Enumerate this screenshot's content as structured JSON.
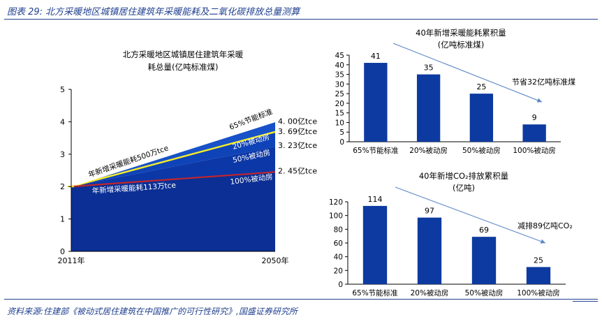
{
  "figure": {
    "title": "图表 29:  北方采暖地区城镇居住建筑年采暖能耗及二氧化碳排放总量测算",
    "source": "资料来源:住建部《被动式居住建筑在中国推广的可行性研究》,国盛证券研究所"
  },
  "colors": {
    "accent": "#1f3f8f",
    "bar": "#0d3aa0",
    "area_base": "#0b2f94",
    "red_line": "#c0262d",
    "yellow_line": "#f5ec2a",
    "arrow": "#5b86c8"
  },
  "chart_data": [
    {
      "type": "area",
      "title_lines": [
        "北方采暖地区城镇居住建筑年采暖",
        "耗总量(亿吨标准煤)"
      ],
      "x": [
        "2011年",
        "2050年"
      ],
      "ylim": [
        0,
        5
      ],
      "yticks": [
        "0",
        "1",
        "2",
        "3",
        "4",
        "5"
      ],
      "series": [
        {
          "name": "100%被动房",
          "values": [
            2.0,
            2.45
          ],
          "end_label": "2. 45亿tce"
        },
        {
          "name": "50%被动房",
          "values": [
            2.0,
            3.23
          ],
          "end_label": "3. 23亿tce"
        },
        {
          "name": "20%被动房",
          "values": [
            2.0,
            3.69
          ],
          "end_label": "3. 69亿tce"
        },
        {
          "name": "65%节能标准",
          "values": [
            2.0,
            4.0
          ],
          "end_label": "4. 00亿tce"
        }
      ],
      "annotations": [
        "年新增采暖能耗500万tce",
        "年新增采暖能耗113万tce"
      ]
    },
    {
      "type": "bar",
      "title_lines": [
        "40年新增采暖能耗累积量",
        "(亿吨标准煤)"
      ],
      "categories": [
        "65%节能标准",
        "20%被动房",
        "50%被动房",
        "100%被动房"
      ],
      "values": [
        41,
        35,
        25,
        9
      ],
      "ylim": [
        0,
        45
      ],
      "yticks": [
        "0",
        "5",
        "10",
        "15",
        "20",
        "25",
        "30",
        "35",
        "40",
        "45"
      ],
      "annotation": "节省32亿吨标准煤"
    },
    {
      "type": "bar",
      "title_lines": [
        "40年新增CO₂排放累积量",
        "(亿吨)"
      ],
      "categories": [
        "65%节能标准",
        "20%被动房",
        "50%被动房",
        "100%被动房"
      ],
      "values": [
        114,
        97,
        69,
        25
      ],
      "ylim": [
        0,
        120
      ],
      "yticks": [
        "0",
        "20",
        "40",
        "60",
        "80",
        "100",
        "120"
      ],
      "annotation": "减排89亿吨CO₂"
    }
  ]
}
